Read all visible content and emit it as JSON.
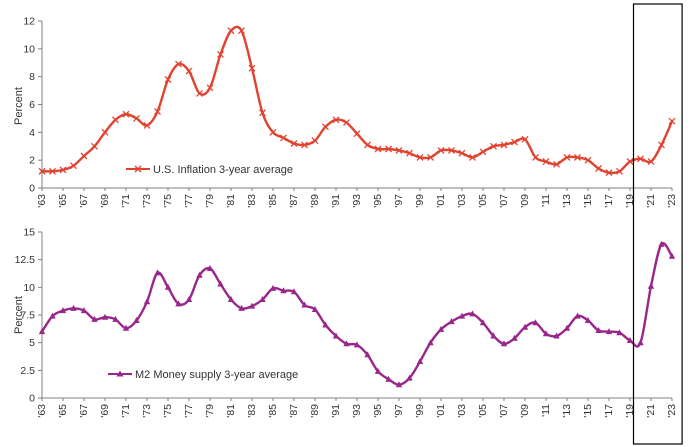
{
  "chart_data": [
    {
      "type": "line",
      "ylabel": "Percent",
      "xlabel": "",
      "x_tick_labels": [
        "'63",
        "'65",
        "'67",
        "'69",
        "'71",
        "'73",
        "'75",
        "'77",
        "'79",
        "'81",
        "'83",
        "'85",
        "'87",
        "'89",
        "'91",
        "'93",
        "'95",
        "'97",
        "'99",
        "'01",
        "'03",
        "'05",
        "'07",
        "'09",
        "'11",
        "'13",
        "'15",
        "'17",
        "'19",
        "'21",
        "'23"
      ],
      "y_tick_labels": [
        "0",
        "2",
        "4",
        "6",
        "8",
        "10",
        "12"
      ],
      "ylim": [
        0,
        12
      ],
      "xlim": [
        1963,
        2023
      ],
      "grid": false,
      "legend_position": "bottom-left",
      "series": [
        {
          "name": "U.S. Inflation 3-year average",
          "color": "#e0432f",
          "marker": "x",
          "points": [
            [
              1963,
              1.2
            ],
            [
              1964,
              1.2
            ],
            [
              1965,
              1.3
            ],
            [
              1966,
              1.6
            ],
            [
              1967,
              2.3
            ],
            [
              1968,
              3.0
            ],
            [
              1969,
              4.0
            ],
            [
              1970,
              4.9
            ],
            [
              1971,
              5.3
            ],
            [
              1972,
              5.0
            ],
            [
              1973,
              4.5
            ],
            [
              1974,
              5.5
            ],
            [
              1975,
              7.8
            ],
            [
              1976,
              8.9
            ],
            [
              1977,
              8.4
            ],
            [
              1978,
              6.8
            ],
            [
              1979,
              7.2
            ],
            [
              1980,
              9.6
            ],
            [
              1981,
              11.3
            ],
            [
              1982,
              11.3
            ],
            [
              1983,
              8.6
            ],
            [
              1984,
              5.4
            ],
            [
              1985,
              4.0
            ],
            [
              1986,
              3.6
            ],
            [
              1987,
              3.2
            ],
            [
              1988,
              3.1
            ],
            [
              1989,
              3.4
            ],
            [
              1990,
              4.4
            ],
            [
              1991,
              4.9
            ],
            [
              1992,
              4.7
            ],
            [
              1993,
              3.9
            ],
            [
              1994,
              3.1
            ],
            [
              1995,
              2.8
            ],
            [
              1996,
              2.8
            ],
            [
              1997,
              2.7
            ],
            [
              1998,
              2.5
            ],
            [
              1999,
              2.2
            ],
            [
              2000,
              2.2
            ],
            [
              2001,
              2.7
            ],
            [
              2002,
              2.7
            ],
            [
              2003,
              2.5
            ],
            [
              2004,
              2.2
            ],
            [
              2005,
              2.6
            ],
            [
              2006,
              3.0
            ],
            [
              2007,
              3.1
            ],
            [
              2008,
              3.3
            ],
            [
              2009,
              3.5
            ],
            [
              2010,
              2.2
            ],
            [
              2011,
              1.9
            ],
            [
              2012,
              1.7
            ],
            [
              2013,
              2.2
            ],
            [
              2014,
              2.2
            ],
            [
              2015,
              2.0
            ],
            [
              2016,
              1.4
            ],
            [
              2017,
              1.1
            ],
            [
              2018,
              1.2
            ],
            [
              2019,
              1.9
            ],
            [
              2020,
              2.1
            ],
            [
              2021,
              1.9
            ],
            [
              2022,
              3.1
            ],
            [
              2023,
              4.8
            ]
          ]
        }
      ]
    },
    {
      "type": "line",
      "ylabel": "Percent",
      "xlabel": "",
      "x_tick_labels": [
        "'63",
        "'65",
        "'67",
        "'69",
        "'71",
        "'73",
        "'75",
        "'77",
        "'79",
        "'81",
        "'83",
        "'85",
        "'87",
        "'89",
        "'91",
        "'93",
        "'95",
        "'97",
        "'99",
        "'01",
        "'03",
        "'05",
        "'07",
        "'09",
        "'11",
        "'13",
        "'15",
        "'17",
        "'19",
        "'21",
        "'23"
      ],
      "y_tick_labels": [
        "0",
        "2.5",
        "5",
        "7.5",
        "10",
        "12.5",
        "15"
      ],
      "ylim": [
        0,
        15
      ],
      "xlim": [
        1963,
        2023
      ],
      "grid": false,
      "legend_position": "bottom-left",
      "series": [
        {
          "name": "M2 Money supply 3-year average",
          "color": "#99268b",
          "marker": "triangle",
          "points": [
            [
              1963,
              6.0
            ],
            [
              1964,
              7.4
            ],
            [
              1965,
              7.9
            ],
            [
              1966,
              8.1
            ],
            [
              1967,
              7.9
            ],
            [
              1968,
              7.1
            ],
            [
              1969,
              7.3
            ],
            [
              1970,
              7.1
            ],
            [
              1971,
              6.3
            ],
            [
              1972,
              7.0
            ],
            [
              1973,
              8.7
            ],
            [
              1974,
              11.3
            ],
            [
              1975,
              10.0
            ],
            [
              1976,
              8.5
            ],
            [
              1977,
              8.9
            ],
            [
              1978,
              11.1
            ],
            [
              1979,
              11.7
            ],
            [
              1980,
              10.3
            ],
            [
              1981,
              8.9
            ],
            [
              1982,
              8.1
            ],
            [
              1983,
              8.3
            ],
            [
              1984,
              8.9
            ],
            [
              1985,
              9.9
            ],
            [
              1986,
              9.7
            ],
            [
              1987,
              9.6
            ],
            [
              1988,
              8.4
            ],
            [
              1989,
              8.0
            ],
            [
              1990,
              6.6
            ],
            [
              1991,
              5.6
            ],
            [
              1992,
              4.9
            ],
            [
              1993,
              4.8
            ],
            [
              1994,
              3.9
            ],
            [
              1995,
              2.4
            ],
            [
              1996,
              1.7
            ],
            [
              1997,
              1.2
            ],
            [
              1998,
              1.8
            ],
            [
              1999,
              3.3
            ],
            [
              2000,
              5.0
            ],
            [
              2001,
              6.2
            ],
            [
              2002,
              6.9
            ],
            [
              2003,
              7.4
            ],
            [
              2004,
              7.6
            ],
            [
              2005,
              6.8
            ],
            [
              2006,
              5.6
            ],
            [
              2007,
              4.9
            ],
            [
              2008,
              5.4
            ],
            [
              2009,
              6.4
            ],
            [
              2010,
              6.8
            ],
            [
              2011,
              5.8
            ],
            [
              2012,
              5.6
            ],
            [
              2013,
              6.3
            ],
            [
              2014,
              7.4
            ],
            [
              2015,
              7.0
            ],
            [
              2016,
              6.1
            ],
            [
              2017,
              6.0
            ],
            [
              2018,
              5.9
            ],
            [
              2019,
              5.2
            ],
            [
              2020,
              5.0
            ],
            [
              2021,
              10.1
            ],
            [
              2022,
              13.9
            ],
            [
              2023,
              12.8
            ]
          ]
        }
      ]
    }
  ],
  "highlight_range": [
    2020,
    2023.2
  ],
  "colors": {
    "axis": "#808080",
    "highlight_box": "#000000"
  }
}
